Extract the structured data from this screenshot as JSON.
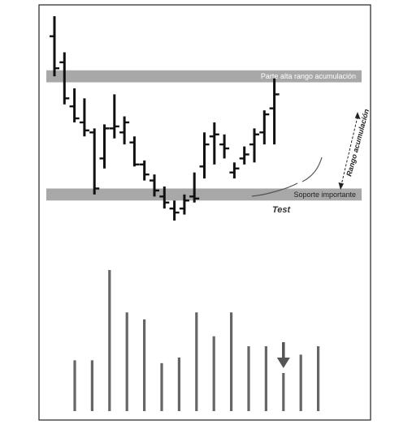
{
  "chart_data": [
    {
      "type": "ohlc",
      "title": "",
      "xlabel": "",
      "ylabel": "",
      "ylim": [
        0,
        100
      ],
      "grid": false,
      "bars": [
        {
          "high": 96,
          "low": 66,
          "open": 86,
          "close": 70
        },
        {
          "high": 78,
          "low": 52,
          "open": 73,
          "close": 55
        },
        {
          "high": 60,
          "low": 43,
          "open": 51,
          "close": 45
        },
        {
          "high": 55,
          "low": 36,
          "open": 43,
          "close": 39
        },
        {
          "high": 40,
          "low": 7,
          "open": 38,
          "close": 10
        },
        {
          "high": 42,
          "low": 20,
          "open": 25,
          "close": 40
        },
        {
          "high": 57,
          "low": 35,
          "open": 40,
          "close": 41
        },
        {
          "high": 46,
          "low": 32,
          "open": 38,
          "close": 43
        },
        {
          "high": 36,
          "low": 21,
          "open": 33,
          "close": 22
        },
        {
          "high": 24,
          "low": 14,
          "open": 22,
          "close": 17
        },
        {
          "high": 17,
          "low": 6,
          "open": 14,
          "close": 9
        },
        {
          "high": 11,
          "low": 0,
          "open": 6,
          "close": 3
        },
        {
          "high": 4,
          "low": -6,
          "open": 0,
          "close": -2
        },
        {
          "high": 7,
          "low": -3,
          "open": 0,
          "close": 4
        },
        {
          "high": 18,
          "low": 3,
          "open": 6,
          "close": 5
        },
        {
          "high": 38,
          "low": 15,
          "open": 21,
          "close": 32
        },
        {
          "high": 43,
          "low": 22,
          "open": 36,
          "close": 37
        },
        {
          "high": 37,
          "low": 25,
          "open": 32,
          "close": 30
        },
        {
          "high": 23,
          "low": 15,
          "open": 18,
          "close": 20
        },
        {
          "high": 31,
          "low": 22,
          "open": 25,
          "close": 27
        },
        {
          "high": 40,
          "low": 23,
          "open": 32,
          "close": 37
        },
        {
          "high": 49,
          "low": 32,
          "open": 38,
          "close": 47
        },
        {
          "high": 65,
          "low": 32,
          "open": 50,
          "close": 57
        }
      ],
      "zones": [
        {
          "name": "Parte alta rango acumulación",
          "from": 63,
          "to": 69
        },
        {
          "name": "Soporte importante",
          "from": 4,
          "to": 10
        }
      ],
      "annotations": {
        "test": "Test",
        "range": "Rango acumulación"
      },
      "colors": {
        "zone": "#a8a8a8",
        "bar": "#111111",
        "test_text": "#333333"
      }
    },
    {
      "type": "bar",
      "title": "",
      "xlabel": "",
      "ylabel": "",
      "ylim": [
        0,
        100
      ],
      "grid": false,
      "values": [
        36,
        36,
        100,
        70,
        65,
        34,
        38,
        70,
        53,
        70,
        46,
        46,
        27,
        40,
        46
      ],
      "marker_index": 12,
      "colors": {
        "bar": "#666666",
        "arrow": "#555555"
      }
    }
  ]
}
